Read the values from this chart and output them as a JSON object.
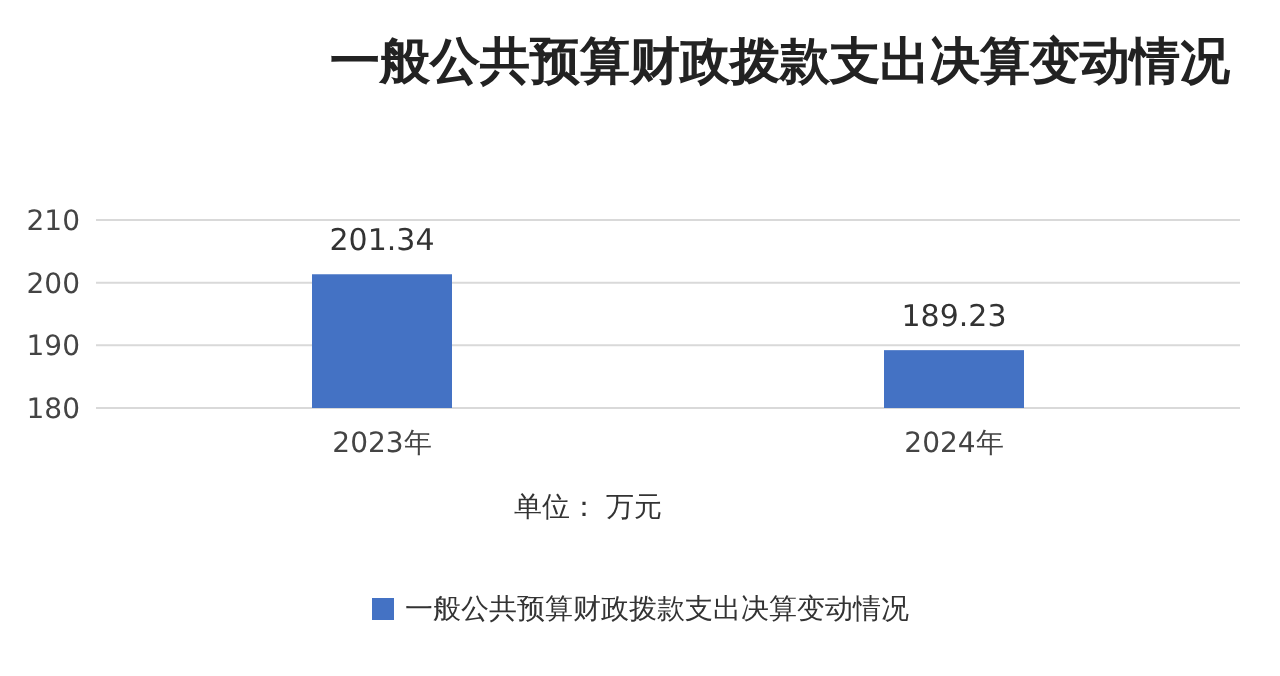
{
  "chart_data": {
    "type": "bar",
    "title": "一般公共预算财政拨款支出决算变动情况",
    "xlabel": "单位： 万元",
    "categories": [
      "2023年",
      "2024年"
    ],
    "series": [
      {
        "name": "一般公共预算财政拨款支出决算变动情况",
        "color": "#4472c4",
        "values": [
          201.34,
          189.23
        ]
      }
    ],
    "ylim": [
      180,
      210
    ],
    "yticks": [
      180,
      190,
      200,
      210
    ],
    "grid": "y",
    "data_labels": true,
    "legend": "bottom"
  }
}
